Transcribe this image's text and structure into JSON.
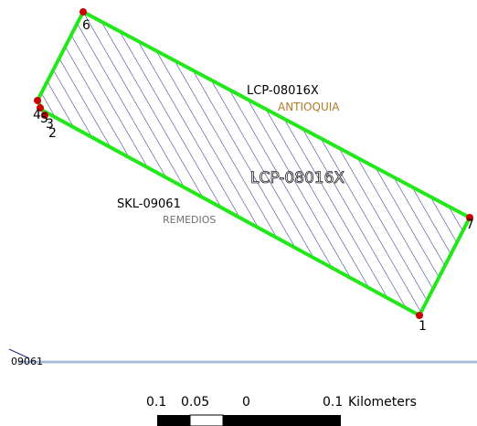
{
  "map": {
    "polygon_label": "LCP-08016X",
    "adjacent_code": "LCP-08016X",
    "region_label": "ANTIOQUIA",
    "parcel_code": "SKL-09061",
    "municipality_label": "REMEDIOS",
    "edge_label": "09061",
    "vertices": [
      {
        "id": "1",
        "label": "1"
      },
      {
        "id": "2",
        "label": "2"
      },
      {
        "id": "3",
        "label": "3"
      },
      {
        "id": "4",
        "label": "4"
      },
      {
        "id": "5",
        "label": "5"
      },
      {
        "id": "6",
        "label": "6"
      },
      {
        "id": "7",
        "label": "7"
      }
    ],
    "colors": {
      "boundary": "#22e81a",
      "hatch": "#1a2a7a",
      "vertex": "#cc0000",
      "region_label": "#b07a2a",
      "municipality_label": "#707070",
      "separator": "#a8bcd8"
    }
  },
  "scale_bar": {
    "ticks": [
      "0.1",
      "0.05",
      "0",
      "0.1"
    ],
    "unit": "Kilometers"
  }
}
